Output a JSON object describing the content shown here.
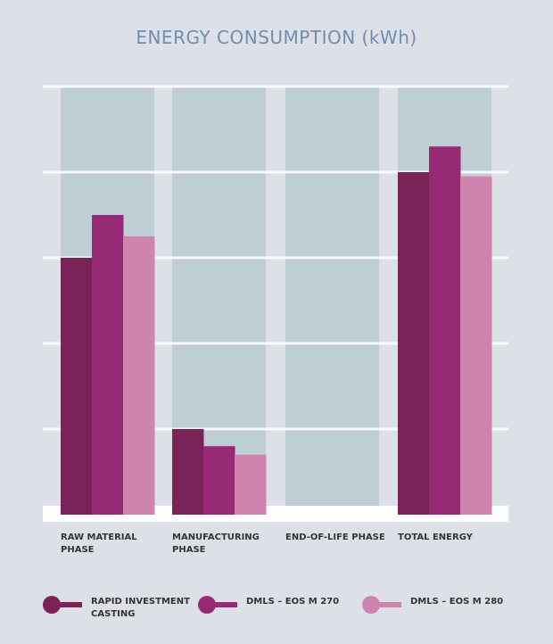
{
  "chart_data": {
    "type": "bar",
    "title": "ENERGY CONSUMPTION (kWh)",
    "categories": [
      "RAW MATERIAL PHASE",
      "MANUFACTURING PHASE",
      "END-OF-LIFE PHASE",
      "TOTAL ENERGY"
    ],
    "series": [
      {
        "name": "RAPID INVESTMENT CASTING",
        "color": "#7a2358",
        "values": [
          3.0,
          1.0,
          0,
          4.0
        ]
      },
      {
        "name": "DMLS – EOS M 270",
        "color": "#962a75",
        "values": [
          3.5,
          0.8,
          0,
          4.3
        ]
      },
      {
        "name": "DMLS – EOS M 280",
        "color": "#cf84b0",
        "values": [
          3.25,
          0.7,
          0,
          3.95
        ]
      }
    ],
    "ylim": [
      0,
      5
    ],
    "y_tick_labels_shown": false,
    "grid": true,
    "legend_position": "bottom",
    "colors": {
      "background": "#dde1e7",
      "panel": "#bfcdd5",
      "grid": "#ffffff",
      "title": "#6f8db0"
    }
  }
}
